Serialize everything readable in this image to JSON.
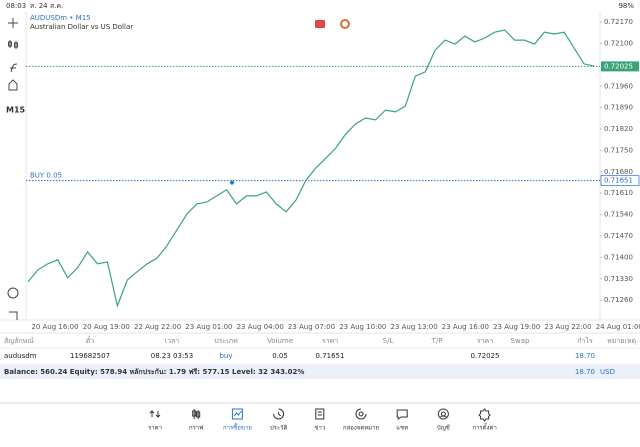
{
  "status": {
    "time": "08:03",
    "date": "ส. 24 ส.ค.",
    "battery": "98%"
  },
  "toolbar": {
    "timeframe": "M15"
  },
  "chart": {
    "type": "line",
    "symbol": "AUDUSDm • M15",
    "description": "Australian Dollar vs US Dollar",
    "color": "#3aa37a",
    "ylim": [
      0.71195,
      0.72203
    ],
    "yticks": [
      {
        "value": 0.7217,
        "label": "0.72170"
      },
      {
        "value": 0.721,
        "label": "0.72100"
      },
      {
        "value": 0.7196,
        "label": "0.71960"
      },
      {
        "value": 0.7189,
        "label": "0.71890"
      },
      {
        "value": 0.7182,
        "label": "0.71820"
      },
      {
        "value": 0.7175,
        "label": "0.71750"
      },
      {
        "value": 0.7168,
        "label": "0.71680"
      },
      {
        "value": 0.7161,
        "label": "0.71610"
      },
      {
        "value": 0.7154,
        "label": "0.71540"
      },
      {
        "value": 0.7147,
        "label": "0.71470"
      },
      {
        "value": 0.714,
        "label": "0.71400"
      },
      {
        "value": 0.7133,
        "label": "0.71330"
      },
      {
        "value": 0.7126,
        "label": "0.71260"
      }
    ],
    "current": {
      "value": 0.72025,
      "label": "0.72025"
    },
    "position": {
      "label": "BUY 0.05",
      "price": {
        "value": 0.71651,
        "label": "0.71651"
      }
    },
    "categories": [
      "20 Aug 16:00",
      "20 Aug 19:00",
      "22 Aug 22:00",
      "23 Aug 01:00",
      "23 Aug 04:00",
      "23 Aug 07:00",
      "23 Aug 10:00",
      "23 Aug 13:00",
      "23 Aug 16:00",
      "23 Aug 19:00",
      "23 Aug 22:00",
      "24 Aug 01:00"
    ],
    "values": [
      0.7132,
      0.71359,
      0.71379,
      0.71392,
      0.71333,
      0.71366,
      0.71418,
      0.71379,
      0.71385,
      0.71241,
      0.71326,
      0.71353,
      0.71379,
      0.71398,
      0.71438,
      0.7149,
      0.71542,
      0.71575,
      0.71581,
      0.71601,
      0.71621,
      0.71575,
      0.71601,
      0.71601,
      0.71614,
      0.71575,
      0.71549,
      0.71588,
      0.71653,
      0.71693,
      0.71725,
      0.71758,
      0.71804,
      0.71837,
      0.71856,
      0.7185,
      0.71882,
      0.71876,
      0.71895,
      0.71993,
      0.72007,
      0.72078,
      0.72111,
      0.72098,
      0.72124,
      0.72105,
      0.72118,
      0.72137,
      0.72144,
      0.72111,
      0.72111,
      0.72098,
      0.72137,
      0.72131,
      0.72137,
      0.72085,
      0.72033,
      0.72026
    ]
  },
  "table": {
    "headers": [
      "สัญลักษณ์",
      "ตั๋ว",
      "เวลา",
      "ประเภท",
      "Volume",
      "ราคา",
      "S/L",
      "T/P",
      "ราคา",
      "Swap",
      "กำไร",
      "หมายเหตุ"
    ],
    "row": {
      "symbol": "audusdm",
      "ticket": "119682507",
      "time": "08.23 03:53",
      "type": "buy",
      "volume": "0.05",
      "price": "0.71651",
      "current_price": "0.72025",
      "profit": "18.70"
    },
    "balance_line": "Balance: 560.24 Equity: 578.94 หลักประกัน: 1.79 ฟรี: 577.15 Level: 32 343.02%",
    "total_profit": "18.70",
    "currency": "USD"
  },
  "nav": {
    "items": [
      "ราคา",
      "กราฟ",
      "การซื้อขาย",
      "ประวัติ",
      "ข่าว",
      "กล่องจดหมาย",
      "แชท",
      "บัญชี",
      "การตั้งค่า"
    ],
    "active": 2
  }
}
